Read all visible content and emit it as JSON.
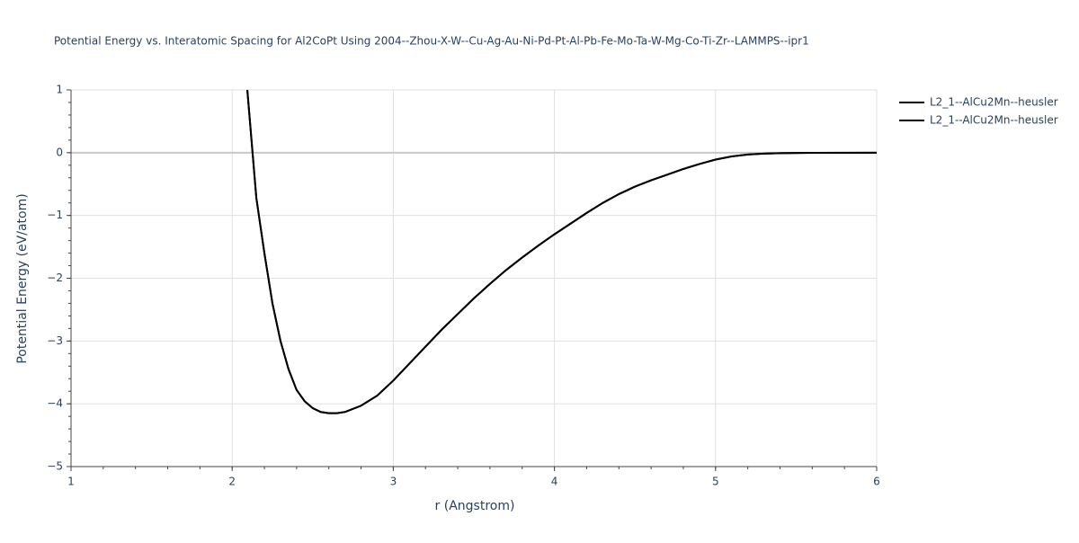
{
  "chart_data": {
    "type": "line",
    "title": "Potential Energy vs. Interatomic Spacing for Al2CoPt Using 2004--Zhou-X-W--Cu-Ag-Au-Ni-Pd-Pt-Al-Pb-Fe-Mo-Ta-W-Mg-Co-Ti-Zr--LAMMPS--ipr1",
    "x_label": "r (Angstrom)",
    "y_label": "Potential Energy (eV/atom)",
    "x": [
      2.094,
      2.15,
      2.2,
      2.25,
      2.3,
      2.35,
      2.4,
      2.45,
      2.5,
      2.55,
      2.6,
      2.65,
      2.7,
      2.8,
      2.9,
      3.0,
      3.1,
      3.2,
      3.3,
      3.4,
      3.5,
      3.6,
      3.7,
      3.8,
      3.9,
      4.0,
      4.1,
      4.2,
      4.3,
      4.4,
      4.5,
      4.6,
      4.7,
      4.8,
      4.9,
      5.0,
      5.1,
      5.2,
      5.3,
      5.4,
      5.6,
      6.0
    ],
    "series": [
      {
        "name": "L2_1--AlCu2Mn--heusler",
        "color": "#000000",
        "values": [
          1,
          -0.72,
          -1.6,
          -2.4,
          -3.0,
          -3.45,
          -3.78,
          -3.96,
          -4.07,
          -4.13,
          -4.15,
          -4.15,
          -4.13,
          -4.03,
          -3.87,
          -3.63,
          -3.36,
          -3.09,
          -2.82,
          -2.57,
          -2.32,
          -2.09,
          -1.87,
          -1.67,
          -1.48,
          -1.3,
          -1.13,
          -0.96,
          -0.8,
          -0.66,
          -0.54,
          -0.44,
          -0.35,
          -0.26,
          -0.18,
          -0.11,
          -0.06,
          -0.03,
          -0.015,
          -0.007,
          -0.003,
          0
        ]
      },
      {
        "name": "L2_1--AlCu2Mn--heusler",
        "color": "#000000",
        "values": [
          1,
          -0.72,
          -1.6,
          -2.4,
          -3.0,
          -3.45,
          -3.78,
          -3.96,
          -4.07,
          -4.13,
          -4.15,
          -4.15,
          -4.13,
          -4.03,
          -3.87,
          -3.63,
          -3.36,
          -3.09,
          -2.82,
          -2.57,
          -2.32,
          -2.09,
          -1.87,
          -1.67,
          -1.48,
          -1.3,
          -1.13,
          -0.96,
          -0.8,
          -0.66,
          -0.54,
          -0.44,
          -0.35,
          -0.26,
          -0.18,
          -0.11,
          -0.06,
          -0.03,
          -0.015,
          -0.007,
          -0.003,
          0
        ]
      }
    ],
    "xlim": [
      1,
      6
    ],
    "xticks": [
      1,
      2,
      3,
      4,
      5,
      6
    ],
    "ylim": [
      -5,
      1
    ],
    "yticks": [
      {
        "value": -5,
        "label": "−5"
      },
      {
        "value": -4,
        "label": "−4"
      },
      {
        "value": -3,
        "label": "−3"
      },
      {
        "value": -2,
        "label": "−2"
      },
      {
        "value": -1,
        "label": "−1"
      },
      0,
      1
    ],
    "grid": true,
    "legend": "top-right"
  }
}
